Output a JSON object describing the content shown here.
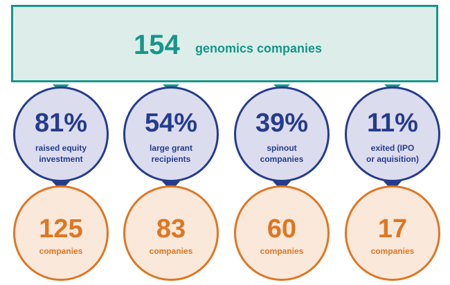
{
  "banner": {
    "count": "154",
    "label": "genomics companies"
  },
  "colors": {
    "teal": "#17968a",
    "teal_fill": "#ddeeea",
    "navy": "#263c8b",
    "navy_fill": "#dcdcef",
    "orange": "#de7622",
    "orange_fill": "#fae8da"
  },
  "categories": [
    {
      "percent": "81%",
      "label_lines": [
        "raised equity",
        "investment"
      ],
      "count": "125",
      "count_label": "companies"
    },
    {
      "percent": "54%",
      "label_lines": [
        "large grant",
        "recipients"
      ],
      "count": "83",
      "count_label": "companies"
    },
    {
      "percent": "39%",
      "label_lines": [
        "spinout",
        "companies"
      ],
      "count": "60",
      "count_label": "companies"
    },
    {
      "percent": "11%",
      "label_lines": [
        "exited (IPO",
        "or aquisition)"
      ],
      "count": "17",
      "count_label": "companies"
    }
  ]
}
